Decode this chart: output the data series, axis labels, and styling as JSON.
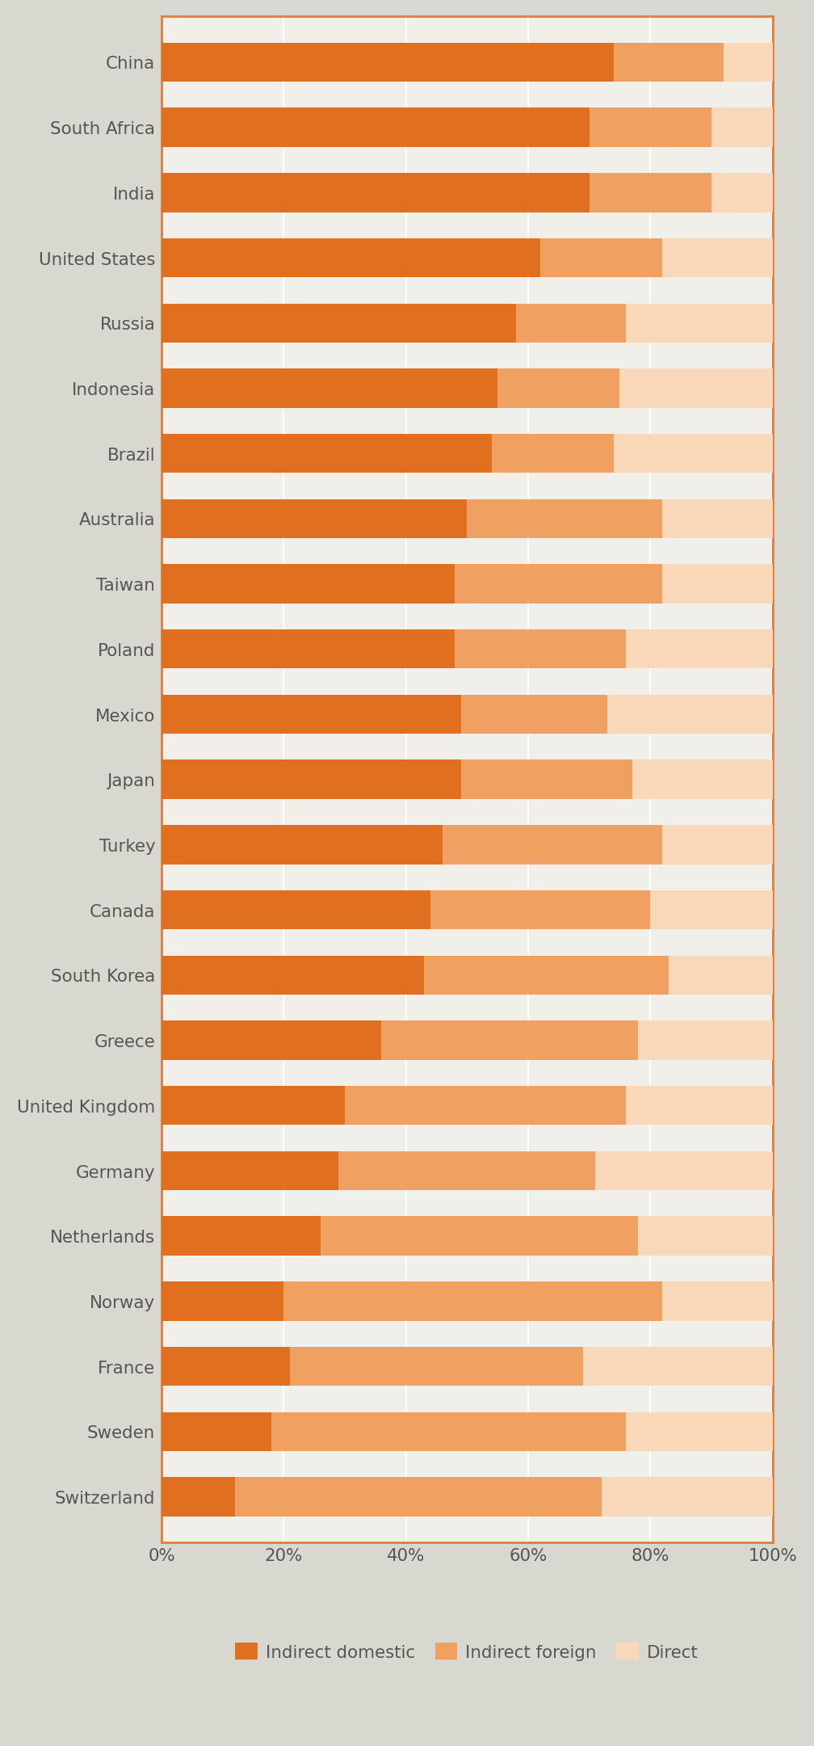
{
  "countries": [
    "China",
    "South Africa",
    "India",
    "United States",
    "Russia",
    "Indonesia",
    "Brazil",
    "Australia",
    "Taiwan",
    "Poland",
    "Mexico",
    "Japan",
    "Turkey",
    "Canada",
    "South Korea",
    "Greece",
    "United Kingdom",
    "Germany",
    "Netherlands",
    "Norway",
    "France",
    "Sweden",
    "Switzerland"
  ],
  "indirect_domestic": [
    74,
    70,
    70,
    62,
    58,
    55,
    54,
    50,
    48,
    48,
    49,
    49,
    46,
    44,
    43,
    36,
    30,
    29,
    26,
    20,
    21,
    18,
    12
  ],
  "indirect_foreign": [
    18,
    20,
    20,
    20,
    18,
    20,
    20,
    32,
    34,
    28,
    24,
    28,
    36,
    36,
    40,
    42,
    46,
    42,
    52,
    62,
    48,
    58,
    60
  ],
  "direct": [
    8,
    10,
    10,
    18,
    24,
    25,
    26,
    18,
    18,
    24,
    27,
    23,
    18,
    20,
    17,
    22,
    24,
    29,
    22,
    18,
    31,
    24,
    28
  ],
  "color_indirect_domestic": "#E07020",
  "color_indirect_foreign": "#F0A060",
  "color_direct": "#F8D8B8",
  "background_color": "#D8D8D0",
  "plot_area_color": "#F0EFEA",
  "bar_height": 0.6,
  "legend_labels": [
    "Indirect domestic",
    "Indirect foreign",
    "Direct"
  ],
  "xlim": [
    0,
    100
  ],
  "xtick_vals": [
    0,
    20,
    40,
    60,
    80,
    100
  ],
  "xtick_labels": [
    "0%",
    "20%",
    "40%",
    "60%",
    "80%",
    "100%"
  ],
  "label_color": "#555555",
  "border_color": "#E08040",
  "grid_color": "#FFFFFF"
}
